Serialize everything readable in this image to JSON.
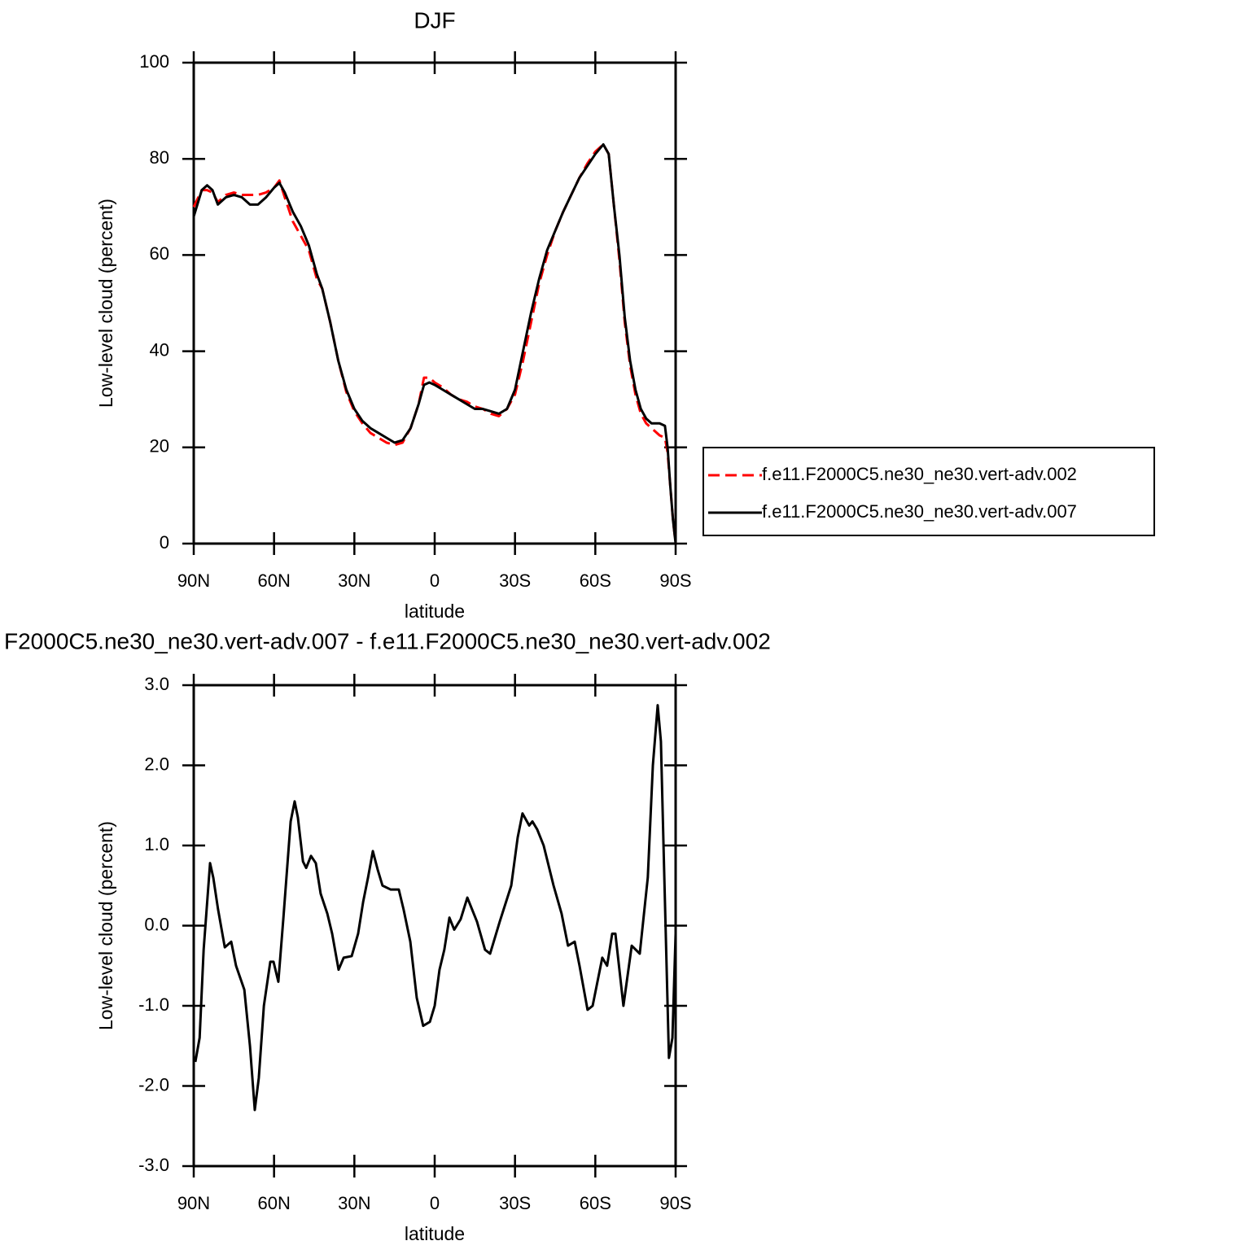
{
  "chart_data": [
    {
      "type": "line",
      "title": "DJF",
      "xlabel": "latitude",
      "ylabel": "Low-level cloud (percent)",
      "xlim": [
        90,
        -90
      ],
      "xticks": [
        {
          "value": 90,
          "label": "90N"
        },
        {
          "value": 60,
          "label": "60N"
        },
        {
          "value": 30,
          "label": "30N"
        },
        0,
        {
          "value": -30,
          "label": "30S"
        },
        {
          "value": -60,
          "label": "60S"
        },
        {
          "value": -90,
          "label": "90S"
        }
      ],
      "ylim": [
        0,
        100
      ],
      "yticks": [
        0,
        20,
        40,
        60,
        80,
        100
      ],
      "legend": "outside-right",
      "x": [
        90,
        87,
        85,
        83,
        81,
        78,
        75,
        72,
        69,
        66,
        63,
        60,
        58,
        56,
        53,
        50,
        47,
        44,
        42,
        39,
        36,
        33,
        30,
        27,
        24,
        21,
        18,
        15,
        12,
        9,
        6,
        4,
        2,
        0,
        -3,
        -6,
        -9,
        -12,
        -15,
        -18,
        -21,
        -24,
        -27,
        -30,
        -33,
        -36,
        -39,
        -42,
        -45,
        -48,
        -51,
        -54,
        -57,
        -60,
        -63,
        -65,
        -67,
        -69,
        -71,
        -73,
        -75,
        -77,
        -79,
        -81,
        -84,
        -86,
        -87,
        -88,
        -89,
        -90
      ],
      "series": [
        {
          "name": "f.e11.F2000C5.ne30_ne30.vert-adv.002",
          "color": "#ff0000",
          "dash": true,
          "values": [
            70,
            73.5,
            73.5,
            73,
            71,
            72.5,
            73,
            72.5,
            72.5,
            72.5,
            73,
            74,
            75.5,
            72,
            67,
            64,
            61,
            55,
            53,
            46,
            38,
            31.5,
            27.5,
            25,
            23,
            22,
            21,
            20.5,
            21,
            24,
            29,
            34.5,
            34.5,
            33.5,
            32.5,
            31,
            30,
            29.5,
            28.5,
            28,
            27,
            26.5,
            28,
            31,
            38,
            46,
            54,
            60,
            65,
            69,
            72.5,
            76,
            79,
            81.5,
            83,
            81,
            70,
            59,
            46,
            37,
            31,
            27,
            25,
            24,
            22.5,
            22,
            19,
            12,
            5,
            0
          ]
        },
        {
          "name": "f.e11.F2000C5.ne30_ne30.vert-adv.007",
          "color": "#000000",
          "dash": false,
          "values": [
            68,
            73.5,
            74.5,
            73.5,
            70.5,
            72,
            72.5,
            72,
            70.5,
            70.5,
            72,
            74,
            75,
            73,
            69,
            66,
            62,
            56,
            53,
            46,
            38,
            32,
            28,
            25.5,
            24,
            23,
            22,
            21,
            21.5,
            24,
            29,
            33,
            33.5,
            33,
            32,
            31,
            30,
            29,
            28,
            28,
            27.5,
            27,
            28,
            32,
            40,
            48,
            55,
            61,
            65,
            69,
            72.5,
            76,
            78.5,
            81,
            83,
            81,
            70,
            60,
            47,
            38,
            32,
            28,
            26,
            25,
            25,
            24.5,
            20,
            12,
            5,
            0
          ]
        }
      ]
    },
    {
      "type": "line",
      "title": "F2000C5.ne30_ne30.vert-adv.007 - f.e11.F2000C5.ne30_ne30.vert-adv.002",
      "xlabel": "latitude",
      "ylabel": "Low-level cloud (percent)",
      "xlim": [
        90,
        -90
      ],
      "xticks": [
        {
          "value": 90,
          "label": "90N"
        },
        {
          "value": 60,
          "label": "60N"
        },
        {
          "value": 30,
          "label": "30N"
        },
        0,
        {
          "value": -30,
          "label": "30S"
        },
        {
          "value": -60,
          "label": "60S"
        },
        {
          "value": -90,
          "label": "90S"
        }
      ],
      "ylim": [
        -3,
        3
      ],
      "yticks": [
        {
          "value": -3,
          "label": "-3.0"
        },
        {
          "value": -2,
          "label": "-2.0"
        },
        {
          "value": -1,
          "label": "-1.0"
        },
        {
          "value": 0,
          "label": "0.0"
        },
        {
          "value": 1,
          "label": "1.0"
        },
        {
          "value": 2,
          "label": "2.0"
        },
        {
          "value": 3,
          "label": "3.0"
        }
      ],
      "color": "#000000",
      "x": [
        89.4,
        87.8,
        86.3,
        83.9,
        82.7,
        80.9,
        78.4,
        76,
        74.2,
        71.1,
        69,
        67.2,
        65.7,
        63.8,
        61.4,
        60.2,
        58.4,
        56.5,
        53.8,
        52.3,
        51.1,
        49.2,
        48,
        46.2,
        44.4,
        42.6,
        40.1,
        38.3,
        35.9,
        34,
        31,
        28.6,
        26.7,
        24.9,
        23.1,
        21.3,
        19.5,
        16.4,
        13.4,
        11.6,
        9.1,
        6.7,
        4.3,
        1.8,
        0,
        -1.8,
        -3.6,
        -5.5,
        -7.3,
        -9.7,
        -12.2,
        -15.8,
        -18.8,
        -20.7,
        -24.3,
        -28.6,
        -31,
        -32.8,
        -35.3,
        -36.5,
        -38.3,
        -40.7,
        -44.4,
        -47.4,
        -49.8,
        -52.3,
        -54.1,
        -57.1,
        -59,
        -62.6,
        -64.4,
        -66.3,
        -67.5,
        -70.5,
        -73.6,
        -76.6,
        -79.6,
        -81.5,
        -83.3,
        -84.5,
        -85.7,
        -87.5,
        -88.8,
        -90
      ],
      "values": [
        -1.7,
        -1.4,
        -0.3,
        0.78,
        0.6,
        0.2,
        -0.27,
        -0.2,
        -0.5,
        -0.8,
        -1.5,
        -2.3,
        -1.9,
        -1.0,
        -0.45,
        -0.45,
        -0.7,
        0.1,
        1.3,
        1.55,
        1.35,
        0.8,
        0.72,
        0.87,
        0.78,
        0.4,
        0.15,
        -0.1,
        -0.55,
        -0.4,
        -0.38,
        -0.1,
        0.3,
        0.6,
        0.93,
        0.7,
        0.5,
        0.45,
        0.45,
        0.2,
        -0.2,
        -0.9,
        -1.25,
        -1.2,
        -1.0,
        -0.55,
        -0.3,
        0.1,
        -0.05,
        0.08,
        0.35,
        0.05,
        -0.3,
        -0.35,
        0.05,
        0.5,
        1.1,
        1.4,
        1.25,
        1.3,
        1.2,
        1.0,
        0.5,
        0.15,
        -0.25,
        -0.2,
        -0.5,
        -1.05,
        -1.0,
        -0.4,
        -0.5,
        -0.1,
        -0.1,
        -1.0,
        -0.25,
        -0.35,
        0.6,
        2.0,
        2.75,
        2.3,
        0.7,
        -1.65,
        -1.4,
        -0.1
      ]
    }
  ]
}
